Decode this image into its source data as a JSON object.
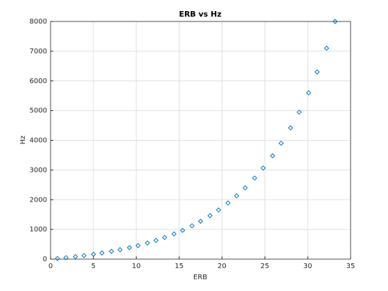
{
  "chart_data": {
    "type": "scatter",
    "title": "ERB vs Hz",
    "xlabel": "ERB",
    "ylabel": "Hz",
    "series": [
      {
        "color": "#0072bd",
        "x": [
          0.8,
          1.8,
          2.9,
          3.9,
          5.0,
          6.0,
          7.1,
          8.1,
          9.2,
          10.2,
          11.3,
          12.3,
          13.3,
          14.4,
          15.4,
          16.5,
          17.5,
          18.6,
          19.6,
          20.7,
          21.7,
          22.7,
          23.8,
          24.8,
          25.9,
          26.9,
          28.0,
          29.0,
          30.1,
          31.1,
          32.2,
          33.2
        ],
        "values": [
          21,
          49,
          84,
          119,
          163,
          207,
          262,
          318,
          387,
          457,
          543,
          630,
          728,
          848,
          970,
          1121,
          1274,
          1463,
          1655,
          1891,
          2132,
          2400,
          2730,
          3066,
          3481,
          3902,
          4420,
          4947,
          5599,
          6300,
          7100,
          8000
        ]
      }
    ],
    "xlim": [
      0,
      35
    ],
    "xticks": [
      0,
      5,
      10,
      15,
      20,
      25,
      30,
      35
    ],
    "ylim": [
      0,
      8000
    ],
    "yticks": [
      0,
      1000,
      2000,
      3000,
      4000,
      5000,
      6000,
      7000,
      8000
    ],
    "grid": true
  }
}
